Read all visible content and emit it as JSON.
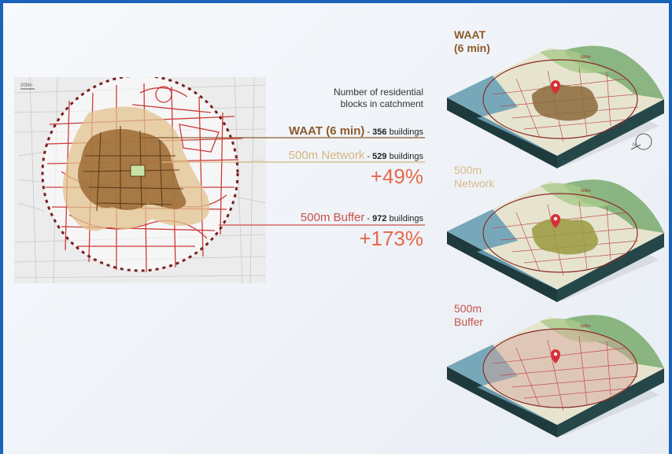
{
  "legend": {
    "heading_line1": "Number of residential",
    "heading_line2": "blocks in catchment",
    "rows": [
      {
        "title": "WAAT (6 min)",
        "sep": " - ",
        "count": "356",
        "unit": " buildings",
        "color": "#8b5a2b"
      },
      {
        "title": "500m Network",
        "sep": " - ",
        "count": "529",
        "unit": " buildings",
        "color": "#d6b57f",
        "pct": "+49%"
      },
      {
        "title": "500m Buffer",
        "sep": " - ",
        "count": "972",
        "unit": " buildings",
        "color": "#c9504b",
        "pct": "+173%"
      }
    ]
  },
  "map": {
    "scale_text": "200m"
  },
  "blocks": [
    {
      "line1": "WAAT",
      "line2": "(6 min)",
      "color": "#8b5a2b",
      "fill": "#8b6a3c"
    },
    {
      "line1": "500m",
      "line2": "Network",
      "color": "#d8b98a",
      "fill": "#9a9a3f"
    },
    {
      "line1": "500m",
      "line2": "Buffer",
      "color": "#c9504b",
      "fill": "#d7a59a"
    }
  ],
  "block_scale_label": "500m",
  "colors": {
    "waat": "#8b5a2b",
    "network": "#d6b57f",
    "buffer": "#c9504b",
    "border": "#1a63b8"
  }
}
